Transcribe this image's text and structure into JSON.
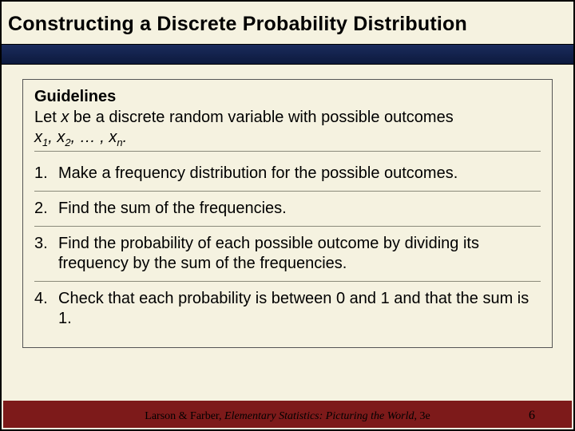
{
  "title": "Constructing a Discrete Probability Distribution",
  "guidelines_heading": "Guidelines",
  "intro_prefix": "Let ",
  "intro_var": "x",
  "intro_mid": " be a discrete random variable with possible outcomes ",
  "intro_outcomes_html": "x<sub>1</sub>, x<sub>2</sub>, … , x<sub>n</sub>.",
  "steps": [
    "Make a frequency distribution for the possible outcomes.",
    "Find the sum of the frequencies.",
    "Find the probability of each possible outcome by dividing its frequency by the sum of the frequencies.",
    "Check that each probability is between 0 and 1 and that the sum is 1."
  ],
  "footer_author": "Larson & Farber, ",
  "footer_title": "Elementary Statistics: Picturing the World",
  "footer_edition": ", 3e",
  "page_number": "6",
  "colors": {
    "background": "#f5f2e0",
    "navbar": "#1a2b5c",
    "footer": "#7d1a1a",
    "text": "#000000",
    "divider": "#8a8a7a"
  }
}
